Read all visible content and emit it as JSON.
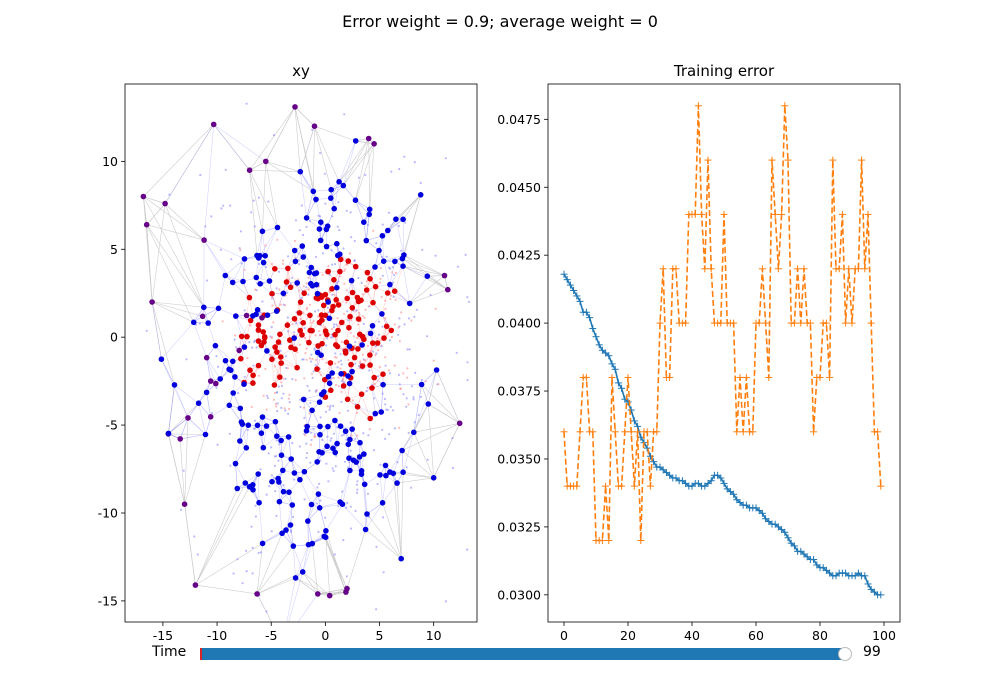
{
  "figure": {
    "suptitle": "Error weight = 0.9; average weight = 0"
  },
  "slider": {
    "label": "Time",
    "value_text": "99",
    "value": 99,
    "min": 0,
    "max": 99,
    "fill_color": "#1f77b4",
    "init_color": "#d62728"
  },
  "chart_data": [
    {
      "type": "scatter",
      "title": "xy",
      "xlabel": "",
      "ylabel": "",
      "xlim": [
        -18.5,
        14
      ],
      "ylim": [
        -16.2,
        14.4
      ],
      "xticks": [
        -15,
        -10,
        -5,
        0,
        5,
        10
      ],
      "yticks": [
        -15,
        -10,
        -5,
        0,
        5,
        10
      ],
      "colors": {
        "node_blue": "#0000dd",
        "node_red": "#dd0000",
        "node_purple": "#660088",
        "edge_gray": "#c8c8c8",
        "edge_blue": "#8080ff",
        "edge_red": "#ff8080"
      },
      "hull_points": [
        [
          -16.8,
          8.0
        ],
        [
          -16.5,
          6.4
        ],
        [
          -14.8,
          7.6
        ],
        [
          -14.5,
          -5.5
        ],
        [
          -12.0,
          -14.1
        ],
        [
          -6.3,
          -14.6
        ],
        [
          -2.8,
          13.1
        ],
        [
          -1.0,
          12.0
        ],
        [
          4.0,
          11.3
        ],
        [
          8.8,
          8.1
        ],
        [
          11.3,
          2.7
        ],
        [
          12.4,
          -4.9
        ],
        [
          7.0,
          -12.6
        ],
        [
          1.9,
          -14.5
        ],
        [
          -0.7,
          -14.6
        ],
        [
          0.4,
          -14.7
        ],
        [
          2.0,
          -14.3
        ],
        [
          4.5,
          11.0
        ],
        [
          -5.5,
          10.0
        ],
        [
          -7.0,
          9.5
        ],
        [
          -16.0,
          2.0
        ],
        [
          -13.0,
          -9.5
        ],
        [
          10.0,
          -8.0
        ],
        [
          9.5,
          -3.8
        ],
        [
          11.0,
          3.5
        ]
      ],
      "cluster_centers": {
        "red": [
          [
            0.5,
            0.0
          ],
          [
            -3.0,
            0.5
          ],
          [
            3.0,
            -2.0
          ],
          [
            -6.0,
            -1.0
          ],
          [
            4.0,
            1.5
          ],
          [
            -1.0,
            2.5
          ]
        ],
        "blue": [
          [
            0.0,
            -3.0
          ],
          [
            -4.0,
            -7.0
          ],
          [
            2.0,
            -7.0
          ],
          [
            -1.0,
            4.0
          ],
          [
            -6.0,
            3.0
          ],
          [
            5.0,
            -6.0
          ],
          [
            -2.0,
            -11.0
          ],
          [
            1.0,
            7.0
          ],
          [
            -8.0,
            -5.0
          ],
          [
            6.0,
            3.0
          ]
        ]
      }
    },
    {
      "type": "line",
      "title": "Training error",
      "xlabel": "",
      "ylabel": "",
      "xlim": [
        -5,
        105
      ],
      "ylim": [
        0.029,
        0.0488
      ],
      "xticks": [
        0,
        20,
        40,
        60,
        80,
        100
      ],
      "yticks": [
        0.03,
        0.0325,
        0.035,
        0.0375,
        0.04,
        0.0425,
        0.045,
        0.0475
      ],
      "ytick_labels": [
        "0.0300",
        "0.0325",
        "0.0350",
        "0.0375",
        "0.0400",
        "0.0425",
        "0.0450",
        "0.0475"
      ],
      "series": [
        {
          "color": "#1f77b4",
          "linestyle": "solid",
          "marker": "+",
          "x": [
            0,
            1,
            2,
            3,
            4,
            5,
            6,
            7,
            8,
            9,
            10,
            11,
            12,
            13,
            14,
            15,
            16,
            17,
            18,
            19,
            20,
            21,
            22,
            23,
            24,
            25,
            26,
            27,
            28,
            29,
            30,
            31,
            32,
            33,
            34,
            35,
            36,
            37,
            38,
            39,
            40,
            41,
            42,
            43,
            44,
            45,
            46,
            47,
            48,
            49,
            50,
            51,
            52,
            53,
            54,
            55,
            56,
            57,
            58,
            59,
            60,
            61,
            62,
            63,
            64,
            65,
            66,
            67,
            68,
            69,
            70,
            71,
            72,
            73,
            74,
            75,
            76,
            77,
            78,
            79,
            80,
            81,
            82,
            83,
            84,
            85,
            86,
            87,
            88,
            89,
            90,
            91,
            92,
            93,
            94,
            95,
            96,
            97,
            98,
            99
          ],
          "values": [
            0.0418,
            0.0416,
            0.0414,
            0.0412,
            0.041,
            0.0408,
            0.0404,
            0.0404,
            0.0402,
            0.0398,
            0.0395,
            0.0392,
            0.039,
            0.0389,
            0.0388,
            0.0385,
            0.0383,
            0.0378,
            0.0376,
            0.0372,
            0.0371,
            0.0368,
            0.0364,
            0.0362,
            0.0358,
            0.0356,
            0.0354,
            0.0351,
            0.0349,
            0.0347,
            0.0347,
            0.0346,
            0.0345,
            0.0344,
            0.0343,
            0.0343,
            0.0342,
            0.0342,
            0.0341,
            0.034,
            0.034,
            0.0341,
            0.0341,
            0.034,
            0.034,
            0.0341,
            0.0342,
            0.0344,
            0.0344,
            0.0343,
            0.0341,
            0.0339,
            0.0338,
            0.0337,
            0.0335,
            0.0334,
            0.0333,
            0.0333,
            0.0332,
            0.0332,
            0.0332,
            0.0331,
            0.033,
            0.0328,
            0.0327,
            0.0326,
            0.0326,
            0.0325,
            0.0324,
            0.0323,
            0.0321,
            0.0319,
            0.0318,
            0.0316,
            0.0316,
            0.0315,
            0.0314,
            0.0313,
            0.0313,
            0.0311,
            0.031,
            0.031,
            0.0309,
            0.0308,
            0.0307,
            0.0307,
            0.0308,
            0.0308,
            0.0308,
            0.0307,
            0.0307,
            0.0307,
            0.0308,
            0.0307,
            0.0307,
            0.0304,
            0.0302,
            0.0301,
            0.03,
            0.03
          ]
        },
        {
          "color": "#ff7f0e",
          "linestyle": "dashed",
          "marker": "+",
          "x": [
            0,
            1,
            2,
            3,
            4,
            5,
            6,
            7,
            8,
            9,
            10,
            11,
            12,
            13,
            14,
            15,
            16,
            17,
            18,
            19,
            20,
            21,
            22,
            23,
            24,
            25,
            26,
            27,
            28,
            29,
            30,
            31,
            32,
            33,
            34,
            35,
            36,
            37,
            38,
            39,
            40,
            41,
            42,
            43,
            44,
            45,
            46,
            47,
            48,
            49,
            50,
            51,
            52,
            53,
            54,
            55,
            56,
            57,
            58,
            59,
            60,
            61,
            62,
            63,
            64,
            65,
            66,
            67,
            68,
            69,
            70,
            71,
            72,
            73,
            74,
            75,
            76,
            77,
            78,
            79,
            80,
            81,
            82,
            83,
            84,
            85,
            86,
            87,
            88,
            89,
            90,
            91,
            92,
            93,
            94,
            95,
            96,
            97,
            98,
            99
          ],
          "values": [
            0.036,
            0.034,
            0.034,
            0.034,
            0.034,
            0.036,
            0.038,
            0.038,
            0.036,
            0.036,
            0.032,
            0.032,
            0.032,
            0.034,
            0.032,
            0.038,
            0.036,
            0.034,
            0.034,
            0.036,
            0.038,
            0.036,
            0.034,
            0.036,
            0.032,
            0.036,
            0.036,
            0.034,
            0.036,
            0.036,
            0.04,
            0.042,
            0.038,
            0.038,
            0.042,
            0.042,
            0.04,
            0.04,
            0.04,
            0.044,
            0.044,
            0.044,
            0.048,
            0.044,
            0.042,
            0.046,
            0.042,
            0.04,
            0.04,
            0.04,
            0.044,
            0.04,
            0.04,
            0.04,
            0.036,
            0.038,
            0.036,
            0.038,
            0.036,
            0.036,
            0.04,
            0.04,
            0.042,
            0.04,
            0.038,
            0.046,
            0.044,
            0.042,
            0.044,
            0.048,
            0.046,
            0.04,
            0.04,
            0.042,
            0.04,
            0.042,
            0.04,
            0.04,
            0.036,
            0.038,
            0.038,
            0.04,
            0.04,
            0.038,
            0.046,
            0.042,
            0.042,
            0.044,
            0.04,
            0.042,
            0.04,
            0.042,
            0.042,
            0.046,
            0.042,
            0.044,
            0.04,
            0.036,
            0.036,
            0.034
          ]
        }
      ]
    }
  ]
}
